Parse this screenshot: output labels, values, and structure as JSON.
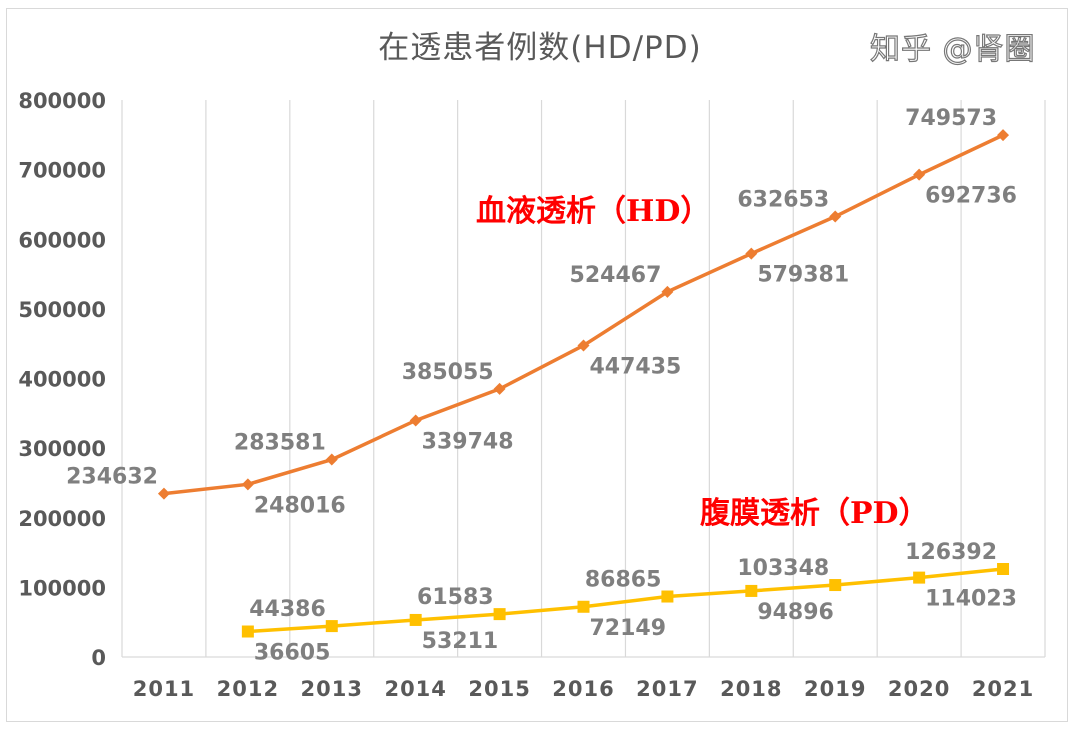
{
  "chart_data": {
    "type": "line",
    "title": "在透患者例数(HD/PD)",
    "categories": [
      "2011",
      "2012",
      "2013",
      "2014",
      "2015",
      "2016",
      "2017",
      "2018",
      "2019",
      "2020",
      "2021"
    ],
    "series": [
      {
        "name": "血液透析（HD）",
        "color": "#ED7D31",
        "marker": "diamond",
        "values": [
          234632,
          248016,
          283581,
          339748,
          385055,
          447435,
          524467,
          579381,
          632653,
          692736,
          749573
        ]
      },
      {
        "name": "腹膜透析（PD）",
        "color": "#FFC000",
        "marker": "square",
        "values": [
          null,
          36605,
          44386,
          53211,
          61583,
          72149,
          86865,
          94896,
          103348,
          114023,
          126392
        ]
      }
    ],
    "ylim": [
      0,
      800000
    ],
    "yticks": [
      "0",
      "100000",
      "200000",
      "300000",
      "400000",
      "500000",
      "600000",
      "700000",
      "800000"
    ],
    "grid": "vertical",
    "data_labels": true,
    "label_color": "#7F7F7F"
  },
  "annotations": {
    "hd": "血液透析（HD）",
    "pd": "腹膜透析（PD）",
    "color": "#FF0000"
  },
  "watermark": "知乎 @肾圈"
}
